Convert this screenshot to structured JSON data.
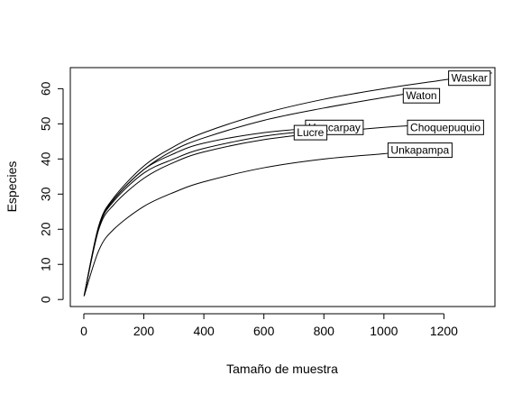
{
  "chart_data": {
    "type": "line",
    "title": "",
    "xlabel": "Tamaño de muestra",
    "ylabel": "Especies",
    "xlim": [
      -45,
      1370
    ],
    "ylim": [
      -2,
      66
    ],
    "xticks": [
      0,
      200,
      400,
      600,
      800,
      1000,
      1200
    ],
    "yticks": [
      0,
      10,
      20,
      30,
      40,
      50,
      60
    ],
    "grid": false,
    "legend": "none",
    "line_color": "#000000",
    "series": [
      {
        "name": "Waskar",
        "x": [
          1,
          50,
          100,
          200,
          300,
          400,
          600,
          800,
          1000,
          1200,
          1360
        ],
        "y": [
          1,
          21,
          29,
          38,
          43.5,
          47.5,
          53,
          57,
          60,
          62.5,
          64.5
        ],
        "label_at": [
          1285,
          63
        ]
      },
      {
        "name": "Waton",
        "x": [
          1,
          50,
          100,
          200,
          300,
          400,
          600,
          800,
          1000,
          1140
        ],
        "y": [
          1,
          20.5,
          28.5,
          37,
          42.5,
          46,
          51,
          54.5,
          57.5,
          59.5
        ],
        "label_at": [
          1125,
          58
        ]
      },
      {
        "name": "Choquepuquio",
        "x": [
          1,
          50,
          100,
          200,
          300,
          400,
          600,
          800,
          1000,
          1090
        ],
        "y": [
          1,
          20,
          27,
          34.5,
          39,
          42,
          45.5,
          47.5,
          49,
          49.5
        ],
        "label_at": [
          1205,
          49
        ]
      },
      {
        "name": "Huacarpay",
        "x": [
          1,
          50,
          100,
          200,
          300,
          400,
          600,
          800,
          830
        ],
        "y": [
          1,
          21,
          28.5,
          37,
          41.5,
          44.5,
          47.5,
          49,
          49
        ],
        "label_at": [
          835,
          49
        ]
      },
      {
        "name": "Lucre",
        "x": [
          1,
          50,
          100,
          200,
          300,
          400,
          600,
          760
        ],
        "y": [
          1,
          20.5,
          28,
          36,
          40,
          43,
          46.5,
          48
        ],
        "label_at": [
          755,
          47.5
        ]
      },
      {
        "name": "Unkapampa",
        "x": [
          1,
          50,
          100,
          200,
          300,
          400,
          600,
          800,
          1000,
          1040
        ],
        "y": [
          1,
          14,
          20,
          26.5,
          30.5,
          33.5,
          37.5,
          40,
          41.5,
          42
        ],
        "label_at": [
          1120,
          42.5
        ]
      }
    ]
  }
}
